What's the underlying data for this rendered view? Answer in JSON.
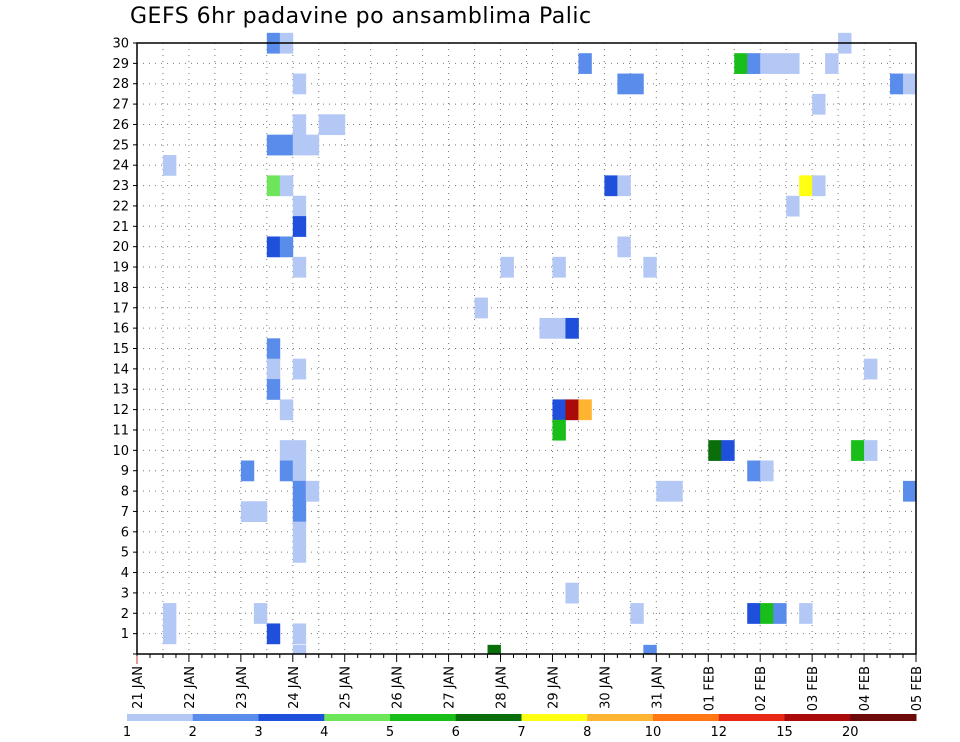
{
  "chart_data": {
    "type": "heatmap",
    "title": "GEFS 6hr padavine po ansamblima Palic",
    "ylabel": "",
    "xlabel": "",
    "y_ticks": [
      "1",
      "2",
      "3",
      "4",
      "5",
      "6",
      "7",
      "8",
      "9",
      "10",
      "11",
      "12",
      "13",
      "14",
      "15",
      "16",
      "17",
      "18",
      "19",
      "20",
      "21",
      "22",
      "23",
      "24",
      "25",
      "26",
      "27",
      "28",
      "29",
      "30"
    ],
    "x_ticks": [
      "21 JAN",
      "22 JAN",
      "23 JAN",
      "24 JAN",
      "25 JAN",
      "26 JAN",
      "27 JAN",
      "28 JAN",
      "29 JAN",
      "30 JAN",
      "31 JAN",
      "01 FEB",
      "02 FEB",
      "03 FEB",
      "04 FEB",
      "05 FEB"
    ],
    "x_range_days": [
      0,
      15
    ],
    "y_range": [
      0,
      30
    ],
    "grid": true,
    "legend": {
      "position": "bottom",
      "labels": [
        "1",
        "2",
        "3",
        "4",
        "5",
        "6",
        "7",
        "8",
        "10",
        "12",
        "15",
        "20"
      ],
      "colors": [
        "#b4c8f5",
        "#5a8ceb",
        "#1e50dc",
        "#6ee65a",
        "#19be19",
        "#0a6e0a",
        "#ffff14",
        "#ffb432",
        "#ff7814",
        "#e62814",
        "#aa0a0a",
        "#6e0a0a"
      ]
    },
    "cells": [
      {
        "member": 30,
        "day": 2.5,
        "level": 2
      },
      {
        "member": 30,
        "day": 2.75,
        "level": 1
      },
      {
        "member": 30,
        "day": 13.5,
        "level": 1
      },
      {
        "member": 29,
        "day": 8.5,
        "level": 2
      },
      {
        "member": 29,
        "day": 11.5,
        "level": 5
      },
      {
        "member": 29,
        "day": 11.75,
        "level": 2
      },
      {
        "member": 29,
        "day": 12.0,
        "level": 1
      },
      {
        "member": 29,
        "day": 12.25,
        "level": 1
      },
      {
        "member": 29,
        "day": 12.5,
        "level": 1
      },
      {
        "member": 29,
        "day": 13.25,
        "level": 1
      },
      {
        "member": 28,
        "day": 3.0,
        "level": 1
      },
      {
        "member": 28,
        "day": 9.25,
        "level": 2
      },
      {
        "member": 28,
        "day": 9.5,
        "level": 2
      },
      {
        "member": 28,
        "day": 14.5,
        "level": 2
      },
      {
        "member": 28,
        "day": 14.75,
        "level": 1
      },
      {
        "member": 27,
        "day": 13.0,
        "level": 1
      },
      {
        "member": 26,
        "day": 3.0,
        "level": 1
      },
      {
        "member": 26,
        "day": 3.5,
        "level": 1
      },
      {
        "member": 26,
        "day": 3.75,
        "level": 1
      },
      {
        "member": 25,
        "day": 2.5,
        "level": 2
      },
      {
        "member": 25,
        "day": 2.75,
        "level": 2
      },
      {
        "member": 25,
        "day": 3.0,
        "level": 1
      },
      {
        "member": 25,
        "day": 3.25,
        "level": 1
      },
      {
        "member": 24,
        "day": 0.5,
        "level": 1
      },
      {
        "member": 23,
        "day": 2.5,
        "level": 4
      },
      {
        "member": 23,
        "day": 2.75,
        "level": 1
      },
      {
        "member": 23,
        "day": 9.0,
        "level": 3
      },
      {
        "member": 23,
        "day": 9.25,
        "level": 1
      },
      {
        "member": 23,
        "day": 12.75,
        "level": 7
      },
      {
        "member": 23,
        "day": 13.0,
        "level": 1
      },
      {
        "member": 22,
        "day": 3.0,
        "level": 1
      },
      {
        "member": 22,
        "day": 12.5,
        "level": 1
      },
      {
        "member": 21,
        "day": 3.0,
        "level": 3
      },
      {
        "member": 20,
        "day": 2.5,
        "level": 3
      },
      {
        "member": 20,
        "day": 2.75,
        "level": 2
      },
      {
        "member": 20,
        "day": 9.25,
        "level": 1
      },
      {
        "member": 19,
        "day": 3.0,
        "level": 1
      },
      {
        "member": 19,
        "day": 7.0,
        "level": 1
      },
      {
        "member": 19,
        "day": 8.0,
        "level": 1
      },
      {
        "member": 19,
        "day": 9.75,
        "level": 1
      },
      {
        "member": 17,
        "day": 6.5,
        "level": 1
      },
      {
        "member": 16,
        "day": 7.75,
        "level": 1
      },
      {
        "member": 16,
        "day": 8.0,
        "level": 1
      },
      {
        "member": 16,
        "day": 8.25,
        "level": 3
      },
      {
        "member": 15,
        "day": 2.5,
        "level": 2
      },
      {
        "member": 14,
        "day": 2.5,
        "level": 1
      },
      {
        "member": 14,
        "day": 3.0,
        "level": 1
      },
      {
        "member": 14,
        "day": 14.0,
        "level": 1
      },
      {
        "member": 13,
        "day": 2.5,
        "level": 2
      },
      {
        "member": 12,
        "day": 2.75,
        "level": 1
      },
      {
        "member": 12,
        "day": 8.0,
        "level": 3
      },
      {
        "member": 12,
        "day": 8.25,
        "level": 11
      },
      {
        "member": 12,
        "day": 8.5,
        "level": 8
      },
      {
        "member": 11,
        "day": 8.0,
        "level": 5
      },
      {
        "member": 10,
        "day": 2.75,
        "level": 1
      },
      {
        "member": 10,
        "day": 3.0,
        "level": 1
      },
      {
        "member": 10,
        "day": 11.0,
        "level": 6
      },
      {
        "member": 10,
        "day": 11.25,
        "level": 3
      },
      {
        "member": 10,
        "day": 13.75,
        "level": 5
      },
      {
        "member": 10,
        "day": 14.0,
        "level": 1
      },
      {
        "member": 9,
        "day": 2.0,
        "level": 2
      },
      {
        "member": 9,
        "day": 2.75,
        "level": 2
      },
      {
        "member": 9,
        "day": 3.0,
        "level": 1
      },
      {
        "member": 9,
        "day": 11.75,
        "level": 2
      },
      {
        "member": 9,
        "day": 12.0,
        "level": 1
      },
      {
        "member": 8,
        "day": 3.0,
        "level": 2
      },
      {
        "member": 8,
        "day": 3.25,
        "level": 1
      },
      {
        "member": 8,
        "day": 10.0,
        "level": 1
      },
      {
        "member": 8,
        "day": 10.25,
        "level": 1
      },
      {
        "member": 8,
        "day": 14.75,
        "level": 2
      },
      {
        "member": 7,
        "day": 2.0,
        "level": 1
      },
      {
        "member": 7,
        "day": 2.25,
        "level": 1
      },
      {
        "member": 7,
        "day": 3.0,
        "level": 2
      },
      {
        "member": 6,
        "day": 3.0,
        "level": 1
      },
      {
        "member": 5,
        "day": 3.0,
        "level": 1
      },
      {
        "member": 3,
        "day": 8.25,
        "level": 1
      },
      {
        "member": 2,
        "day": 0.5,
        "level": 1
      },
      {
        "member": 2,
        "day": 2.25,
        "level": 1
      },
      {
        "member": 2,
        "day": 9.5,
        "level": 1
      },
      {
        "member": 2,
        "day": 11.75,
        "level": 3
      },
      {
        "member": 2,
        "day": 12.0,
        "level": 5
      },
      {
        "member": 2,
        "day": 12.25,
        "level": 2
      },
      {
        "member": 2,
        "day": 12.75,
        "level": 1
      },
      {
        "member": 1,
        "day": 0.5,
        "level": 1
      },
      {
        "member": 1,
        "day": 2.5,
        "level": 3
      },
      {
        "member": 1,
        "day": 3.0,
        "level": 1
      },
      {
        "member": 0,
        "day": 3.0,
        "level": 1
      },
      {
        "member": 0,
        "day": 6.75,
        "level": 6
      },
      {
        "member": 0,
        "day": 9.75,
        "level": 2
      }
    ]
  }
}
